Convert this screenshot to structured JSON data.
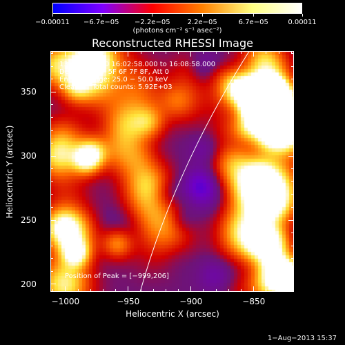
{
  "chart_data": {
    "type": "heatmap",
    "title": "Reconstructed RHESSI Image",
    "xlabel": "Heliocentric X (arcsec)",
    "ylabel": "Heliocentric Y (arcsec)",
    "xlim": [
      -1012,
      -818
    ],
    "ylim": [
      194,
      382
    ],
    "x_ticks": [
      "−1000",
      "−950",
      "−900",
      "−850"
    ],
    "x_tick_values": [
      -1000,
      -950,
      -900,
      -850
    ],
    "y_ticks": [
      "350",
      "300",
      "250",
      "200"
    ],
    "y_tick_values": [
      350,
      300,
      250,
      200
    ],
    "colorbar": {
      "labels": [
        "−0.00011",
        "−6.7e−05",
        "−2.2e−05",
        "2.2e−05",
        "6.7e−05",
        "0.00011"
      ],
      "values": [
        -0.00011,
        -6.7e-05,
        -2.2e-05,
        2.2e-05,
        6.7e-05,
        0.00011
      ],
      "range": [
        -0.00011,
        0.00011
      ],
      "units": "(photons cm⁻² s⁻¹ asec⁻²)"
    },
    "annotations": {
      "time": "13−Oct−2010 16:02:58.000 to 16:08:58.000",
      "detectors": "Detectors: 4F 5F 6F 7F 8F, Att 0",
      "energy": "Energy Range: 25.0 − 50.0 keV",
      "clean": "Clean      Total counts: 5.92E+03",
      "peak": "Position of Peak = [−999,206]"
    },
    "peak_position": [
      -999,
      206
    ],
    "colormap": [
      "#0000ff",
      "#7f00ff",
      "#ff0000",
      "#ff8000",
      "#ffff80",
      "#ffffff"
    ]
  },
  "footer": {
    "date": "1−Aug−2013 15:37"
  }
}
